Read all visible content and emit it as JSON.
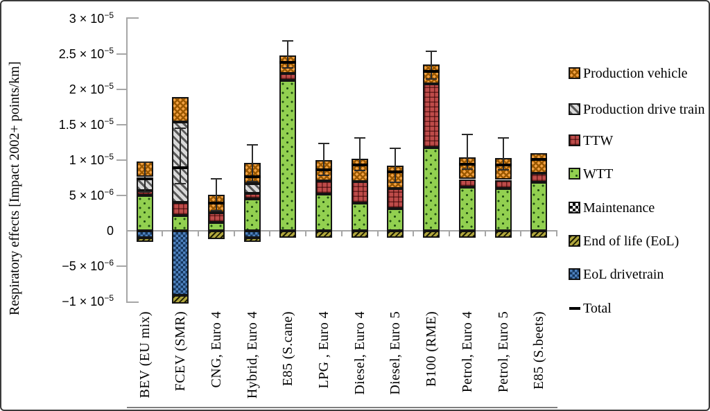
{
  "chart_data": {
    "type": "bar",
    "stacked": true,
    "title": "",
    "xlabel": "",
    "ylabel": "Respiratory effects [Impact 2002+ points/km]",
    "value_unit": "Impact 2002+ points/km",
    "value_scale": "values are in units of 1e-6",
    "ylim_e6": [
      -10,
      30
    ],
    "grid": "zero-line only",
    "legend_position": "right",
    "categories": [
      "BEV (EU mix)",
      "FCEV (SMR)",
      "CNG, Euro 4",
      "Hybrid, Euro 4",
      "E85 (S.cane)",
      "LPG , Euro 4",
      "Diesel, Euro 4",
      "Diesel, Euro 5",
      "B100 (RME)",
      "Petrol, Euro 4",
      "Petrol, Euro 5",
      "E85 (S.beets)"
    ],
    "series": [
      {
        "key": "pv",
        "name": "Production vehicle",
        "color": "#f2a143",
        "pattern": "orange diagonal weave",
        "values": [
          2.2,
          3.5,
          2.5,
          2.9,
          2.5,
          2.9,
          3.2,
          3.2,
          2.7,
          3.1,
          3.1,
          2.9
        ]
      },
      {
        "key": "pdt",
        "name": "Production drive train",
        "color": "#d9d9d9",
        "pattern": "gray diagonal hatch",
        "values": [
          1.9,
          11.4,
          0,
          1.4,
          0,
          0,
          0,
          0,
          0,
          0,
          0,
          0
        ]
      },
      {
        "key": "ttw",
        "name": "TTW",
        "color": "#be4c4a",
        "pattern": "red dotted grid",
        "values": [
          0.7,
          1.8,
          1.4,
          0.8,
          1.0,
          1.9,
          3.1,
          2.9,
          9.0,
          1.1,
          1.2,
          1.2
        ]
      },
      {
        "key": "wtt",
        "name": "WTT",
        "color": "#92d050",
        "pattern": "green sparse dots",
        "values": [
          5.0,
          2.2,
          1.2,
          4.5,
          21.3,
          5.2,
          3.9,
          3.1,
          11.8,
          6.2,
          6.0,
          6.9
        ]
      },
      {
        "key": "maint",
        "name": "Maintenance",
        "color": "#ffffff",
        "pattern": "black-white checker",
        "values": [
          0,
          0,
          0,
          0,
          0,
          0,
          0,
          0,
          0,
          0,
          0,
          0
        ]
      },
      {
        "key": "eol",
        "name": "End of life (EoL)",
        "color": "#b0a63e",
        "pattern": "olive diagonal hatch",
        "values": [
          -0.6,
          -1.2,
          -1.2,
          -0.6,
          -1.0,
          -1.0,
          -1.0,
          -1.0,
          -1.0,
          -1.0,
          -1.0,
          -1.0
        ]
      },
      {
        "key": "eoldt",
        "name": "EoL drivetrain",
        "color": "#4e81be",
        "pattern": "blue checker dots",
        "values": [
          -1.0,
          -9.1,
          0,
          -1.0,
          0,
          0,
          0,
          0,
          0,
          0,
          0,
          0
        ]
      }
    ],
    "stack_order_positive": [
      "wtt",
      "ttw",
      "maint",
      "pdt",
      "pv"
    ],
    "stack_order_negative": [
      "eoldt",
      "eol"
    ],
    "totals": {
      "name": "Total",
      "marker": "black dash",
      "values": [
        7.4,
        8.9,
        3.9,
        7.7,
        23.8,
        8.6,
        9.3,
        8.3,
        22.6,
        9.4,
        9.3,
        10.1
      ]
    },
    "error_low": [
      5.5,
      6.7,
      2.8,
      7.0,
      23.0,
      7.8,
      8.5,
      6.9,
      21.5,
      8.7,
      8.6,
      null
    ],
    "error_high": [
      9.7,
      14.5,
      7.4,
      12.2,
      26.9,
      12.4,
      13.1,
      11.7,
      25.4,
      13.6,
      13.1,
      null
    ],
    "yticks": [
      {
        "m": "3 × 10",
        "s": "−5",
        "v": 30
      },
      {
        "m": "2.5 × 10",
        "s": "−5",
        "v": 25
      },
      {
        "m": "2 × 10",
        "s": "−5",
        "v": 20
      },
      {
        "m": "1.5 × 10",
        "s": "−5",
        "v": 15
      },
      {
        "m": "1 × 10",
        "s": "−5",
        "v": 10
      },
      {
        "m": "5 × 10",
        "s": "−6",
        "v": 5
      },
      {
        "m": "0",
        "s": "",
        "v": 0
      },
      {
        "m": "−5 × 10",
        "s": "−6",
        "v": -5
      },
      {
        "m": "−1 × 10",
        "s": "−5",
        "v": -10
      }
    ],
    "legend_entries": [
      {
        "key": "pv",
        "label": "Production vehicle"
      },
      {
        "key": "pdt",
        "label": "Production drive train"
      },
      {
        "key": "ttw",
        "label": "TTW"
      },
      {
        "key": "wtt",
        "label": "WTT"
      },
      {
        "key": "maint",
        "label": "Maintenance"
      },
      {
        "key": "eol",
        "label": "End of life (EoL)"
      },
      {
        "key": "eoldt",
        "label": "EoL drivetrain"
      },
      {
        "key": "total",
        "label": "Total"
      }
    ]
  }
}
